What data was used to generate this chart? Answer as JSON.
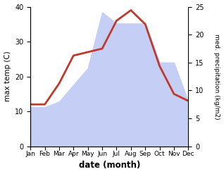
{
  "months": [
    "Jan",
    "Feb",
    "Mar",
    "Apr",
    "May",
    "Jun",
    "Jul",
    "Aug",
    "Sep",
    "Oct",
    "Nov",
    "Dec"
  ],
  "temp": [
    12,
    12,
    18,
    26,
    27,
    28,
    36,
    39,
    35,
    23,
    15,
    13
  ],
  "precip": [
    7,
    7,
    8,
    11,
    14,
    24,
    22,
    22,
    22,
    15,
    15,
    8
  ],
  "temp_ylim": [
    0,
    40
  ],
  "precip_ylim": [
    0,
    25
  ],
  "temp_color": "#c0392b",
  "precip_fill_color": "#c5cef5",
  "xlabel": "date (month)",
  "ylabel_left": "max temp (C)",
  "ylabel_right": "med. precipitation (kg/m2)",
  "figsize": [
    3.18,
    2.47
  ],
  "dpi": 100
}
